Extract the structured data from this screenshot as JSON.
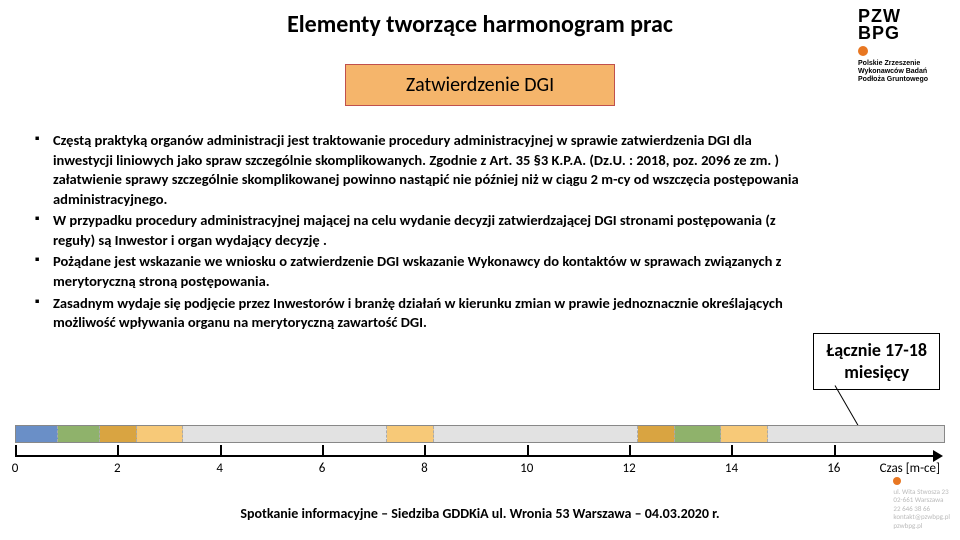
{
  "title": "Elementy tworzące harmonogram prac",
  "subtitle": "Zatwierdzenie DGI",
  "bullets": [
    "Częstą praktyką organów administracji jest traktowanie procedury administracyjnej w sprawie zatwierdzenia DGI dla inwestycji liniowych jako spraw szczególnie skomplikowanych. Zgodnie z Art. 35 §3 K.P.A. (Dz.U. : 2018, poz. 2096 ze zm. )  załatwienie sprawy szczególnie skomplikowanej powinno nastąpić nie później niż w ciągu 2 m-cy od wszczęcia postępowania administracyjnego.",
    "W przypadku procedury administracyjnej mającej na celu wydanie decyzji zatwierdzającej DGI  stronami postępowania (z reguły) są Inwestor i organ wydający decyzję .",
    "Pożądane jest wskazanie we wniosku o zatwierdzenie DGI wskazanie Wykonawcy do kontaktów w sprawach związanych z merytoryczną stroną postępowania.",
    "Zasadnym wydaje się podjęcie przez Inwestorów i branżę działań w kierunku zmian w prawie jednoznacznie określających możliwość wpływania organu na merytoryczną zawartość DGI."
  ],
  "summary": {
    "line1": "Łącznie 17-18",
    "line2": "miesięcy"
  },
  "timeline": {
    "segments": [
      {
        "width_pct": 4.5,
        "color": "#6a8fc7"
      },
      {
        "width_pct": 4.5,
        "color": "#8fb26b"
      },
      {
        "width_pct": 4.0,
        "color": "#d9a441"
      },
      {
        "width_pct": 5.0,
        "color": "#f7c978"
      },
      {
        "width_pct": 22.0,
        "color": "#e2e2e2"
      },
      {
        "width_pct": 5.0,
        "color": "#f7c978"
      },
      {
        "width_pct": 22.0,
        "color": "#e2e2e2"
      },
      {
        "width_pct": 4.0,
        "color": "#d9a441"
      },
      {
        "width_pct": 5.0,
        "color": "#8fb26b"
      },
      {
        "width_pct": 5.0,
        "color": "#f7c978"
      },
      {
        "width_pct": 19.0,
        "color": "#e2e2e2"
      }
    ],
    "ticks": [
      0,
      2,
      4,
      6,
      8,
      10,
      12,
      14,
      16
    ],
    "max": 17,
    "axis_label": "Czas [m-ce]"
  },
  "logo": {
    "line1": "PZW",
    "line2": "BPG",
    "sub": "Polskie Zrzeszenie Wykonawców Badań Podłoża Gruntowego"
  },
  "footer": "Spotkanie informacyjne – Siedziba GDDKiA ul. Wronia 53 Warszawa – 04.03.2020 r.",
  "contact": {
    "l1": "ul. Wita Stwosza 23",
    "l2": "02-661 Warszawa",
    "l3": "22 646 38 66",
    "l4": "kontakt@pzwbpg.pl",
    "l5": "pzwbpg.pl"
  }
}
